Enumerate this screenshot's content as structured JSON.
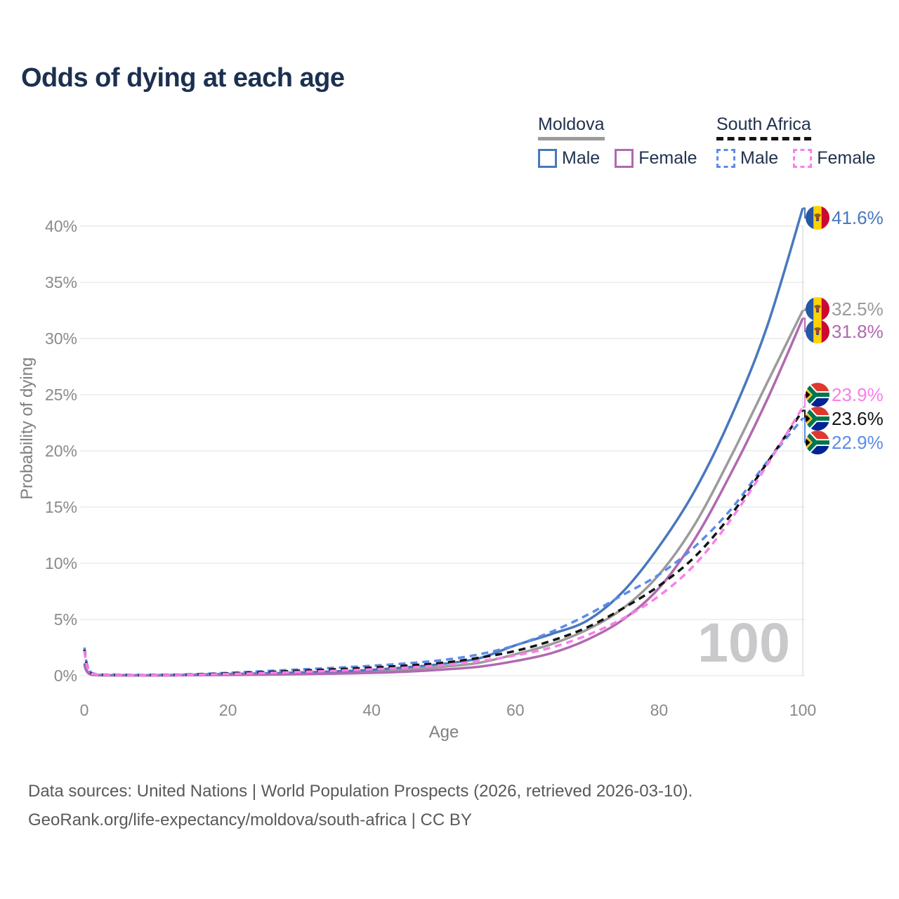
{
  "title": "Odds of dying at each age",
  "watermark_hover_age": "100",
  "legend": {
    "groups": [
      {
        "name": "Moldova",
        "line_style": "solid",
        "underline_color": "#9b9b9b",
        "items": [
          {
            "label": "Male",
            "color": "#4878be"
          },
          {
            "label": "Female",
            "color": "#b069b0"
          }
        ]
      },
      {
        "name": "South Africa",
        "line_style": "dashed",
        "underline_color": "#141414",
        "items": [
          {
            "label": "Male",
            "color": "#5c8bea"
          },
          {
            "label": "Female",
            "color": "#fb7ee8"
          }
        ]
      }
    ]
  },
  "axes": {
    "y_title": "Probability of dying",
    "x_title": "Age",
    "y_ticks": [
      "0%",
      "5%",
      "10%",
      "15%",
      "20%",
      "25%",
      "30%",
      "35%",
      "40%"
    ],
    "y_tick_values": [
      0,
      5,
      10,
      15,
      20,
      25,
      30,
      35,
      40
    ],
    "x_ticks": [
      "0",
      "20",
      "40",
      "60",
      "80",
      "100"
    ],
    "x_tick_values": [
      0,
      20,
      40,
      60,
      80,
      100
    ]
  },
  "end_labels": [
    {
      "value": "41.6%",
      "color": "#4878be",
      "flag": "moldova",
      "series": "moldova-male"
    },
    {
      "value": "32.5%",
      "color": "#9b9b9b",
      "flag": "moldova",
      "series": "moldova-total"
    },
    {
      "value": "31.8%",
      "color": "#b069b0",
      "flag": "moldova",
      "series": "moldova-female"
    },
    {
      "value": "23.9%",
      "color": "#fb7ee8",
      "flag": "south-africa",
      "series": "south-africa-female"
    },
    {
      "value": "23.6%",
      "color": "#141414",
      "flag": "south-africa",
      "series": "south-africa-total"
    },
    {
      "value": "22.9%",
      "color": "#5c8bea",
      "flag": "south-africa",
      "series": "south-africa-male"
    }
  ],
  "footer": {
    "line1": "Data sources: United Nations | World Population Prospects (2026, retrieved 2026-03-10).",
    "line2": "GeoRank.org/life-expectancy/moldova/south-africa | CC BY"
  },
  "chart_data": {
    "type": "line",
    "title": "Odds of dying at each age",
    "xlabel": "Age",
    "ylabel": "Probability of dying",
    "y_unit": "percent",
    "xlim": [
      0,
      100
    ],
    "ylim": [
      0,
      42
    ],
    "grid": "horizontal",
    "legend_position": "top-right",
    "x": [
      0,
      1,
      5,
      10,
      15,
      20,
      25,
      30,
      35,
      40,
      45,
      50,
      55,
      60,
      65,
      70,
      75,
      80,
      85,
      90,
      95,
      100
    ],
    "series": [
      {
        "id": "moldova-total",
        "name": "Moldova (both sexes)",
        "style": "solid",
        "color": "#9b9b9b",
        "values": [
          1.0,
          0.09,
          0.03,
          0.03,
          0.06,
          0.1,
          0.14,
          0.2,
          0.28,
          0.38,
          0.55,
          0.8,
          1.15,
          1.9,
          2.8,
          4.1,
          6.0,
          9.0,
          13.5,
          19.5,
          26.0,
          32.5
        ]
      },
      {
        "id": "moldova-male",
        "name": "Moldova Male",
        "style": "solid",
        "color": "#4878be",
        "values": [
          1.1,
          0.1,
          0.04,
          0.04,
          0.08,
          0.15,
          0.2,
          0.28,
          0.38,
          0.52,
          0.75,
          1.05,
          1.55,
          2.7,
          3.7,
          4.9,
          7.5,
          11.5,
          16.5,
          23.0,
          31.0,
          41.6
        ]
      },
      {
        "id": "moldova-female",
        "name": "Moldova Female",
        "style": "solid",
        "color": "#b069b0",
        "values": [
          0.9,
          0.08,
          0.03,
          0.02,
          0.04,
          0.06,
          0.09,
          0.13,
          0.18,
          0.25,
          0.36,
          0.55,
          0.8,
          1.3,
          2.0,
          3.2,
          5.0,
          7.8,
          12.2,
          18.0,
          24.5,
          31.8
        ]
      },
      {
        "id": "south-africa-male",
        "name": "South Africa Male",
        "style": "dashed",
        "color": "#5c8bea",
        "values": [
          2.5,
          0.25,
          0.08,
          0.07,
          0.12,
          0.25,
          0.4,
          0.55,
          0.7,
          0.88,
          1.1,
          1.4,
          1.9,
          2.7,
          3.9,
          5.4,
          7.2,
          9.0,
          11.5,
          14.8,
          19.0,
          22.9
        ]
      },
      {
        "id": "south-africa-total",
        "name": "South Africa (both sexes)",
        "style": "dashed",
        "color": "#141414",
        "values": [
          2.3,
          0.22,
          0.07,
          0.06,
          0.1,
          0.2,
          0.31,
          0.44,
          0.57,
          0.72,
          0.9,
          1.15,
          1.6,
          2.2,
          3.1,
          4.3,
          6.0,
          8.0,
          10.6,
          14.3,
          18.9,
          23.6
        ]
      },
      {
        "id": "south-africa-female",
        "name": "South Africa Female",
        "style": "dashed",
        "color": "#fb7ee8",
        "values": [
          2.2,
          0.2,
          0.06,
          0.05,
          0.08,
          0.15,
          0.23,
          0.33,
          0.44,
          0.56,
          0.72,
          0.95,
          1.3,
          1.8,
          2.5,
          3.6,
          5.1,
          7.1,
          9.9,
          13.9,
          18.7,
          23.9
        ]
      }
    ]
  }
}
